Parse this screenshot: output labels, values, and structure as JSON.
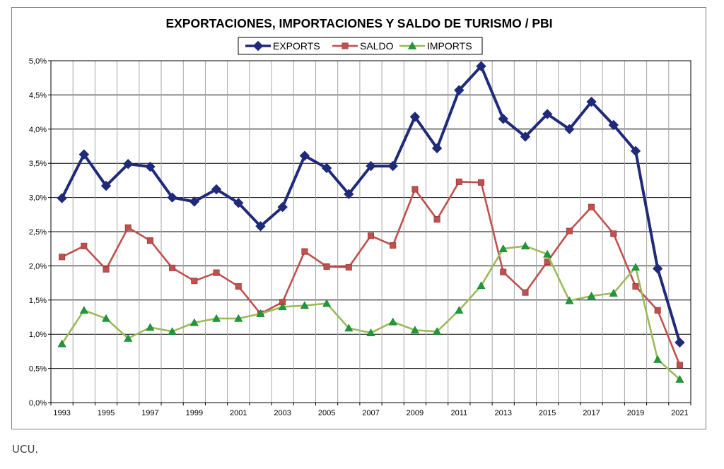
{
  "chart_data": {
    "type": "line",
    "title": "EXPORTACIONES, IMPORTACIONES Y SALDO DE TURISMO / PBI",
    "xlabel": "",
    "ylabel": "",
    "x": [
      1993,
      1994,
      1995,
      1996,
      1997,
      1998,
      1999,
      2000,
      2001,
      2002,
      2003,
      2004,
      2005,
      2006,
      2007,
      2008,
      2009,
      2010,
      2011,
      2012,
      2013,
      2014,
      2015,
      2016,
      2017,
      2018,
      2019,
      2020,
      2021
    ],
    "x_tick_labels": [
      "1993",
      "1995",
      "1997",
      "1999",
      "2001",
      "2003",
      "2005",
      "2007",
      "2009",
      "2011",
      "2013",
      "2015",
      "2017",
      "2019",
      "2021"
    ],
    "ylim": [
      0,
      5.0
    ],
    "y_ticks": [
      0,
      0.5,
      1.0,
      1.5,
      2.0,
      2.5,
      3.0,
      3.5,
      4.0,
      4.5,
      5.0
    ],
    "y_tick_labels": [
      "0,0%",
      "0,5%",
      "1,0%",
      "1,5%",
      "2,0%",
      "2,5%",
      "3,0%",
      "3,5%",
      "4,0%",
      "4,5%",
      "5,0%"
    ],
    "grid": "both",
    "legend_position": "top-center",
    "series": [
      {
        "name": "EXPORTS",
        "color": "#1f2a7a",
        "marker": "diamond",
        "values": [
          2.99,
          3.63,
          3.17,
          3.49,
          3.45,
          3.0,
          2.94,
          3.12,
          2.92,
          2.58,
          2.86,
          3.61,
          3.43,
          3.05,
          3.46,
          3.46,
          4.18,
          3.72,
          4.57,
          4.92,
          4.15,
          3.89,
          4.22,
          4.0,
          4.4,
          4.06,
          3.68,
          1.96,
          0.88
        ]
      },
      {
        "name": "SALDO",
        "color": "#c0504d",
        "marker": "square",
        "values": [
          2.13,
          2.29,
          1.95,
          2.56,
          2.37,
          1.97,
          1.78,
          1.9,
          1.7,
          1.3,
          1.47,
          2.21,
          1.99,
          1.98,
          2.44,
          2.3,
          3.12,
          2.68,
          3.23,
          3.22,
          1.91,
          1.61,
          2.06,
          2.51,
          2.86,
          2.47,
          1.7,
          1.35,
          0.55
        ]
      },
      {
        "name": "IMPORTS",
        "color": "#9bbb59",
        "marker": "triangle",
        "values": [
          0.86,
          1.35,
          1.23,
          0.94,
          1.1,
          1.04,
          1.17,
          1.23,
          1.23,
          1.3,
          1.4,
          1.42,
          1.45,
          1.09,
          1.02,
          1.18,
          1.06,
          1.04,
          1.35,
          1.71,
          2.25,
          2.29,
          2.17,
          1.49,
          1.56,
          1.6,
          1.98,
          0.63,
          0.34
        ]
      }
    ]
  },
  "footer": {
    "source": "UCU."
  }
}
